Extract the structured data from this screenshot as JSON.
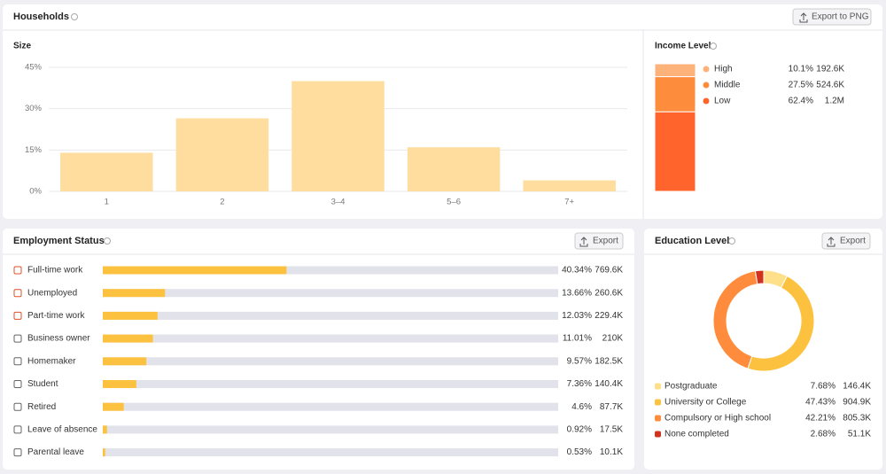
{
  "header": {
    "title": "Households"
  },
  "buttons": {
    "households": "Export to PNG",
    "employment": "Export",
    "education": "Export"
  },
  "chart_data": [
    {
      "type": "bar",
      "title": "Size",
      "categories": [
        "1",
        "2",
        "3–4",
        "5–6",
        "7+"
      ],
      "values": [
        14,
        26.5,
        40,
        16,
        4
      ],
      "color": "#fedd9e",
      "ylim": [
        0,
        45
      ],
      "yticks": [
        {
          "value": 0,
          "label": "0%"
        },
        {
          "value": 15,
          "label": "15%"
        },
        {
          "value": 30,
          "label": "30%"
        },
        {
          "value": 45,
          "label": "45%"
        }
      ],
      "grid": true
    },
    {
      "type": "stacked-bar",
      "title": "Income Level",
      "ylim": [
        0,
        100
      ],
      "series": [
        {
          "name": "High",
          "color": "#fdb27a",
          "values": [
            10.1
          ],
          "value_labels": [
            "10.1%"
          ],
          "count_labels": [
            "192.6K"
          ]
        },
        {
          "name": "Middle",
          "color": "#fd8c3c",
          "values": [
            27.5
          ],
          "value_labels": [
            "27.5%"
          ],
          "count_labels": [
            "524.6K"
          ]
        },
        {
          "name": "Low",
          "color": "#ff642c",
          "values": [
            62.4
          ],
          "value_labels": [
            "62.4%"
          ],
          "count_labels": [
            "1.2M"
          ]
        }
      ]
    },
    {
      "type": "hbar",
      "title": "Employment Status",
      "categories": [
        "Full-time work",
        "Unemployed",
        "Part-time work",
        "Business owner",
        "Homemaker",
        "Student",
        "Retired",
        "Leave of absence",
        "Parental leave"
      ],
      "values": [
        40.34,
        13.66,
        12.03,
        11.01,
        9.57,
        7.36,
        4.6,
        0.92,
        0.53
      ],
      "value_labels": [
        "40.34%",
        "13.66%",
        "12.03%",
        "11.01%",
        "9.57%",
        "7.36%",
        "4.6%",
        "0.92%",
        "0.53%"
      ],
      "count_labels": [
        "769.6K",
        "260.6K",
        "229.4K",
        "210K",
        "182.5K",
        "140.4K",
        "87.7K",
        "17.5K",
        "10.1K"
      ],
      "xlim": [
        0,
        100
      ],
      "color": "#fcc23f",
      "track_color": "#e2e2ea"
    },
    {
      "type": "donut",
      "title": "Education Level",
      "categories": [
        "Postgraduate",
        "University or College",
        "Compulsory or High school",
        "None completed"
      ],
      "values": [
        7.68,
        47.43,
        42.21,
        2.68
      ],
      "value_labels": [
        "7.68%",
        "47.43%",
        "42.21%",
        "2.68%"
      ],
      "count_labels": [
        "146.4K",
        "904.9K",
        "805.3K",
        "51.1K"
      ],
      "colors": [
        "#ffe08a",
        "#fcc23f",
        "#ff8c3c",
        "#d1321e"
      ]
    }
  ]
}
